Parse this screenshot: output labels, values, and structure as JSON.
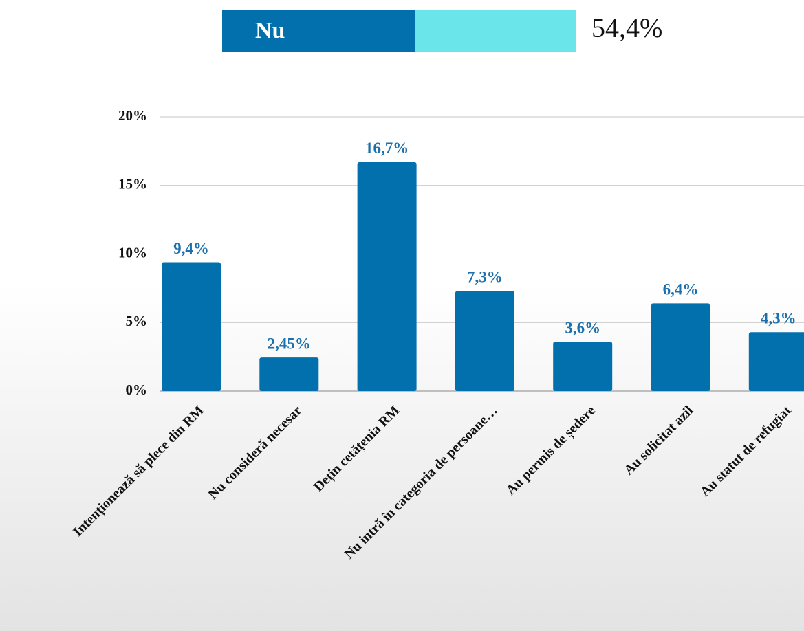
{
  "chart_data": {
    "type": "bar",
    "header": {
      "label": "Nu",
      "value": 54.4,
      "value_label": "54,4%"
    },
    "categories": [
      "Intenționează să plece din RM",
      "Nu consideră necesar",
      "Dețin cetățenia RM",
      "Nu intră în categoria de persoane…",
      "Au permis de ședere",
      "Au solicitat azil",
      "Au statut de refugiat"
    ],
    "values": [
      9.4,
      2.45,
      16.7,
      7.3,
      3.6,
      6.4,
      4.3
    ],
    "value_labels": [
      "9,4%",
      "2,45%",
      "16,7%",
      "7,3%",
      "3,6%",
      "6,4%",
      "4,3%"
    ],
    "color": "#0270ad",
    "ylim": [
      0,
      20
    ],
    "yticks": [
      {
        "value": 0,
        "label": "0%"
      },
      {
        "value": 5,
        "label": "5%"
      },
      {
        "value": 10,
        "label": "10%"
      },
      {
        "value": 15,
        "label": "15%"
      },
      {
        "value": 20,
        "label": "20%"
      }
    ],
    "grid": true
  }
}
